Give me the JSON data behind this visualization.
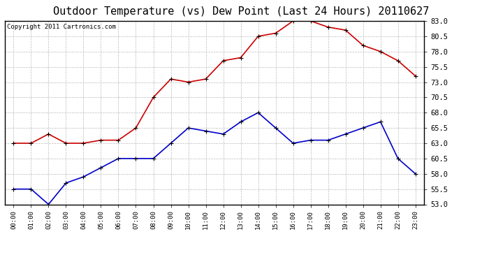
{
  "title": "Outdoor Temperature (vs) Dew Point (Last 24 Hours) 20110627",
  "copyright": "Copyright 2011 Cartronics.com",
  "x_labels": [
    "00:00",
    "01:00",
    "02:00",
    "03:00",
    "04:00",
    "05:00",
    "06:00",
    "07:00",
    "08:00",
    "09:00",
    "10:00",
    "11:00",
    "12:00",
    "13:00",
    "14:00",
    "15:00",
    "16:00",
    "17:00",
    "18:00",
    "19:00",
    "20:00",
    "21:00",
    "22:00",
    "23:00"
  ],
  "temp_red": [
    63.0,
    63.0,
    64.5,
    63.0,
    63.0,
    63.5,
    63.5,
    65.5,
    70.5,
    73.5,
    73.0,
    73.5,
    76.5,
    77.0,
    80.5,
    81.0,
    83.0,
    83.0,
    82.0,
    81.5,
    79.0,
    78.0,
    76.5,
    74.0
  ],
  "dew_blue": [
    55.5,
    55.5,
    53.0,
    56.5,
    57.5,
    59.0,
    60.5,
    60.5,
    60.5,
    63.0,
    65.5,
    65.0,
    64.5,
    66.5,
    68.0,
    65.5,
    63.0,
    63.5,
    63.5,
    64.5,
    65.5,
    66.5,
    60.5,
    58.0
  ],
  "ylim": [
    53.0,
    83.0
  ],
  "yticks": [
    53.0,
    55.5,
    58.0,
    60.5,
    63.0,
    65.5,
    68.0,
    70.5,
    73.0,
    75.5,
    78.0,
    80.5,
    83.0
  ],
  "red_color": "#cc0000",
  "blue_color": "#0000cc",
  "grid_color": "#bbbbbb",
  "bg_color": "#ffffff",
  "title_fontsize": 11,
  "copyright_fontsize": 6.5
}
